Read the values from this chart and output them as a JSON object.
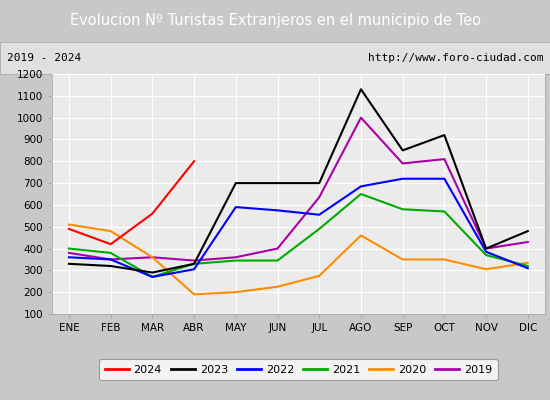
{
  "title": "Evolucion Nº Turistas Extranjeros en el municipio de Teo",
  "subtitle_left": "2019 - 2024",
  "subtitle_right": "http://www.foro-ciudad.com",
  "months": [
    "ENE",
    "FEB",
    "MAR",
    "ABR",
    "MAY",
    "JUN",
    "JUL",
    "AGO",
    "SEP",
    "OCT",
    "NOV",
    "DIC"
  ],
  "ylim": [
    100,
    1200
  ],
  "yticks": [
    100,
    200,
    300,
    400,
    500,
    600,
    700,
    800,
    900,
    1000,
    1100,
    1200
  ],
  "series": {
    "2024": {
      "color": "#ff0000",
      "linestyle": "-",
      "linewidth": 1.5,
      "data": [
        490,
        420,
        560,
        800,
        null,
        null,
        null,
        null,
        null,
        null,
        null,
        null
      ]
    },
    "2023": {
      "color": "#000000",
      "linestyle": "-",
      "linewidth": 1.5,
      "data": [
        330,
        320,
        290,
        330,
        700,
        700,
        700,
        1130,
        850,
        920,
        400,
        480
      ]
    },
    "2022": {
      "color": "#0000ff",
      "linestyle": "-",
      "linewidth": 1.5,
      "data": [
        360,
        350,
        270,
        305,
        590,
        575,
        555,
        685,
        720,
        720,
        385,
        310
      ]
    },
    "2021": {
      "color": "#00aa00",
      "linestyle": "-",
      "linewidth": 1.5,
      "data": [
        400,
        380,
        270,
        330,
        345,
        345,
        490,
        650,
        580,
        570,
        370,
        320
      ]
    },
    "2020": {
      "color": "#ff8c00",
      "linestyle": "-",
      "linewidth": 1.5,
      "data": [
        510,
        480,
        360,
        190,
        200,
        225,
        275,
        460,
        350,
        350,
        305,
        335
      ]
    },
    "2019": {
      "color": "#aa00aa",
      "linestyle": "-",
      "linewidth": 1.5,
      "data": [
        380,
        350,
        360,
        345,
        360,
        400,
        635,
        1000,
        790,
        810,
        400,
        430
      ]
    }
  },
  "title_bg_color": "#4472C4",
  "title_font_color": "white",
  "plot_bg_color": "#ebebeb",
  "grid_color": "white",
  "subtitle_bg_color": "#e0e0e0",
  "outer_bg_color": "#c8c8c8",
  "title_fontsize": 10.5,
  "subtitle_fontsize": 8,
  "tick_fontsize": 7.5
}
